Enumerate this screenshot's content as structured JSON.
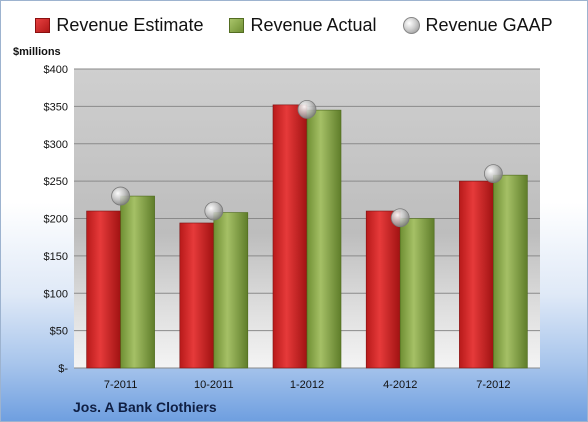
{
  "legend": {
    "estimate_label": "Revenue Estimate",
    "actual_label": "Revenue Actual",
    "gaap_label": "Revenue GAAP"
  },
  "company": "Jos. A Bank Clothiers",
  "chart_data": {
    "type": "bar",
    "units_label": "$millions",
    "categories": [
      "7-2011",
      "10-2011",
      "1-2012",
      "4-2012",
      "7-2012"
    ],
    "series": [
      {
        "name": "Revenue Estimate",
        "values": [
          210,
          194,
          352,
          210,
          250
        ],
        "color": "#cc2222"
      },
      {
        "name": "Revenue Actual",
        "values": [
          230,
          208,
          345,
          200,
          258
        ],
        "color": "#8aaa4a"
      },
      {
        "name": "Revenue GAAP",
        "values": [
          230,
          210,
          346,
          201,
          260
        ],
        "color": "#b0b0b0",
        "style": "marker"
      }
    ],
    "ylim": [
      0,
      400
    ],
    "yticks": [
      0,
      50,
      100,
      150,
      200,
      250,
      300,
      350,
      400
    ],
    "ytick_labels": [
      "$-",
      "$50",
      "$100",
      "$150",
      "$200",
      "$250",
      "$300",
      "$350",
      "$400"
    ],
    "grid": true,
    "legend_position": "top"
  }
}
